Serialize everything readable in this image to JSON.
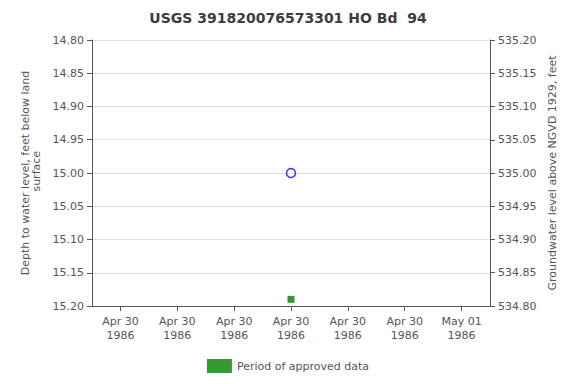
{
  "chart_data": {
    "type": "scatter",
    "title": "USGS 391820076573301 HO Bd  94",
    "y_label": "Depth to water level, feet below land\n surface",
    "y2_label": "Groundwater level above NGVD 1929, feet",
    "categories": [
      "Apr 30\n1986",
      "Apr 30\n1986",
      "Apr 30\n1986",
      "Apr 30\n1986",
      "Apr 30\n1986",
      "Apr 30\n1986",
      "May 01\n1986"
    ],
    "series": [
      {
        "color": "#0000ff",
        "marker": "circle_open",
        "values": [
          null,
          null,
          null,
          15.0,
          null,
          null,
          null
        ]
      },
      {
        "name": "Period of approved data",
        "color": "#008000",
        "marker": "square",
        "values": [
          null,
          null,
          null,
          15.19,
          null,
          null,
          null
        ]
      }
    ],
    "ylim": [
      15.2,
      14.8
    ],
    "yticks": [
      {
        "value": 14.8,
        "label": "14.80"
      },
      {
        "value": 14.85,
        "label": "14.85"
      },
      {
        "value": 14.9,
        "label": "14.90"
      },
      {
        "value": 14.95,
        "label": "14.95"
      },
      {
        "value": 15.0,
        "label": "15.00"
      },
      {
        "value": 15.05,
        "label": "15.05"
      },
      {
        "value": 15.1,
        "label": "15.10"
      },
      {
        "value": 15.15,
        "label": "15.15"
      },
      {
        "value": 15.2,
        "label": "15.20"
      }
    ],
    "y2lim": [
      534.8,
      535.2
    ],
    "y2ticks": [
      {
        "value": 535.2,
        "label": "535.20"
      },
      {
        "value": 535.15,
        "label": "535.15"
      },
      {
        "value": 535.1,
        "label": "535.10"
      },
      {
        "value": 535.05,
        "label": "535.05"
      },
      {
        "value": 535.0,
        "label": "535.00"
      },
      {
        "value": 534.95,
        "label": "534.95"
      },
      {
        "value": 534.9,
        "label": "534.90"
      },
      {
        "value": 534.85,
        "label": "534.85"
      },
      {
        "value": 534.8,
        "label": "534.80"
      }
    ],
    "grid": true,
    "legend": "bottom"
  }
}
